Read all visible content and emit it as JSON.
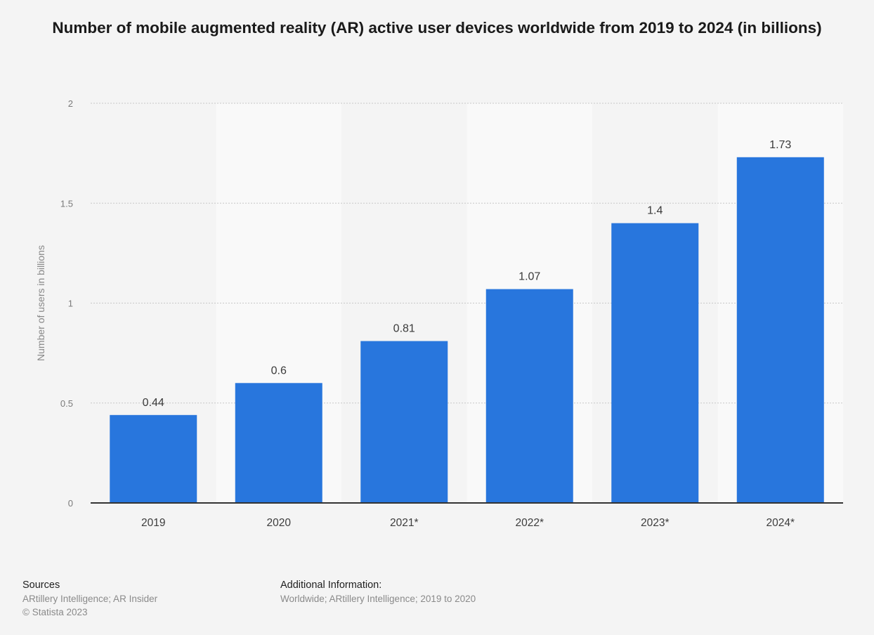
{
  "chart_data": {
    "type": "bar",
    "title": "Number of mobile augmented reality (AR) active user devices worldwide from 2019 to 2024 (in billions)",
    "xlabel": "",
    "ylabel": "Number of users in billions",
    "categories": [
      "2019",
      "2020",
      "2021*",
      "2022*",
      "2023*",
      "2024*"
    ],
    "values": [
      0.44,
      0.6,
      0.81,
      1.07,
      1.4,
      1.73
    ],
    "value_labels": [
      "0.44",
      "0.6",
      "0.81",
      "1.07",
      "1.4",
      "1.73"
    ],
    "ylim": [
      0,
      2
    ],
    "yticks": [
      0,
      0.5,
      1,
      1.5,
      2
    ],
    "ytick_labels": [
      "0",
      "0.5",
      "1",
      "1.5",
      "2"
    ],
    "grid": true,
    "legend": "none",
    "bar_color": "#2876dd",
    "band_color": "#f9f9f9"
  },
  "footer": {
    "sources_heading": "Sources",
    "sources_line1": "ARtillery Intelligence; AR Insider",
    "sources_line2": "© Statista 2023",
    "additional_heading": "Additional Information:",
    "additional_line1": "Worldwide; ARtillery Intelligence; 2019 to 2020"
  }
}
